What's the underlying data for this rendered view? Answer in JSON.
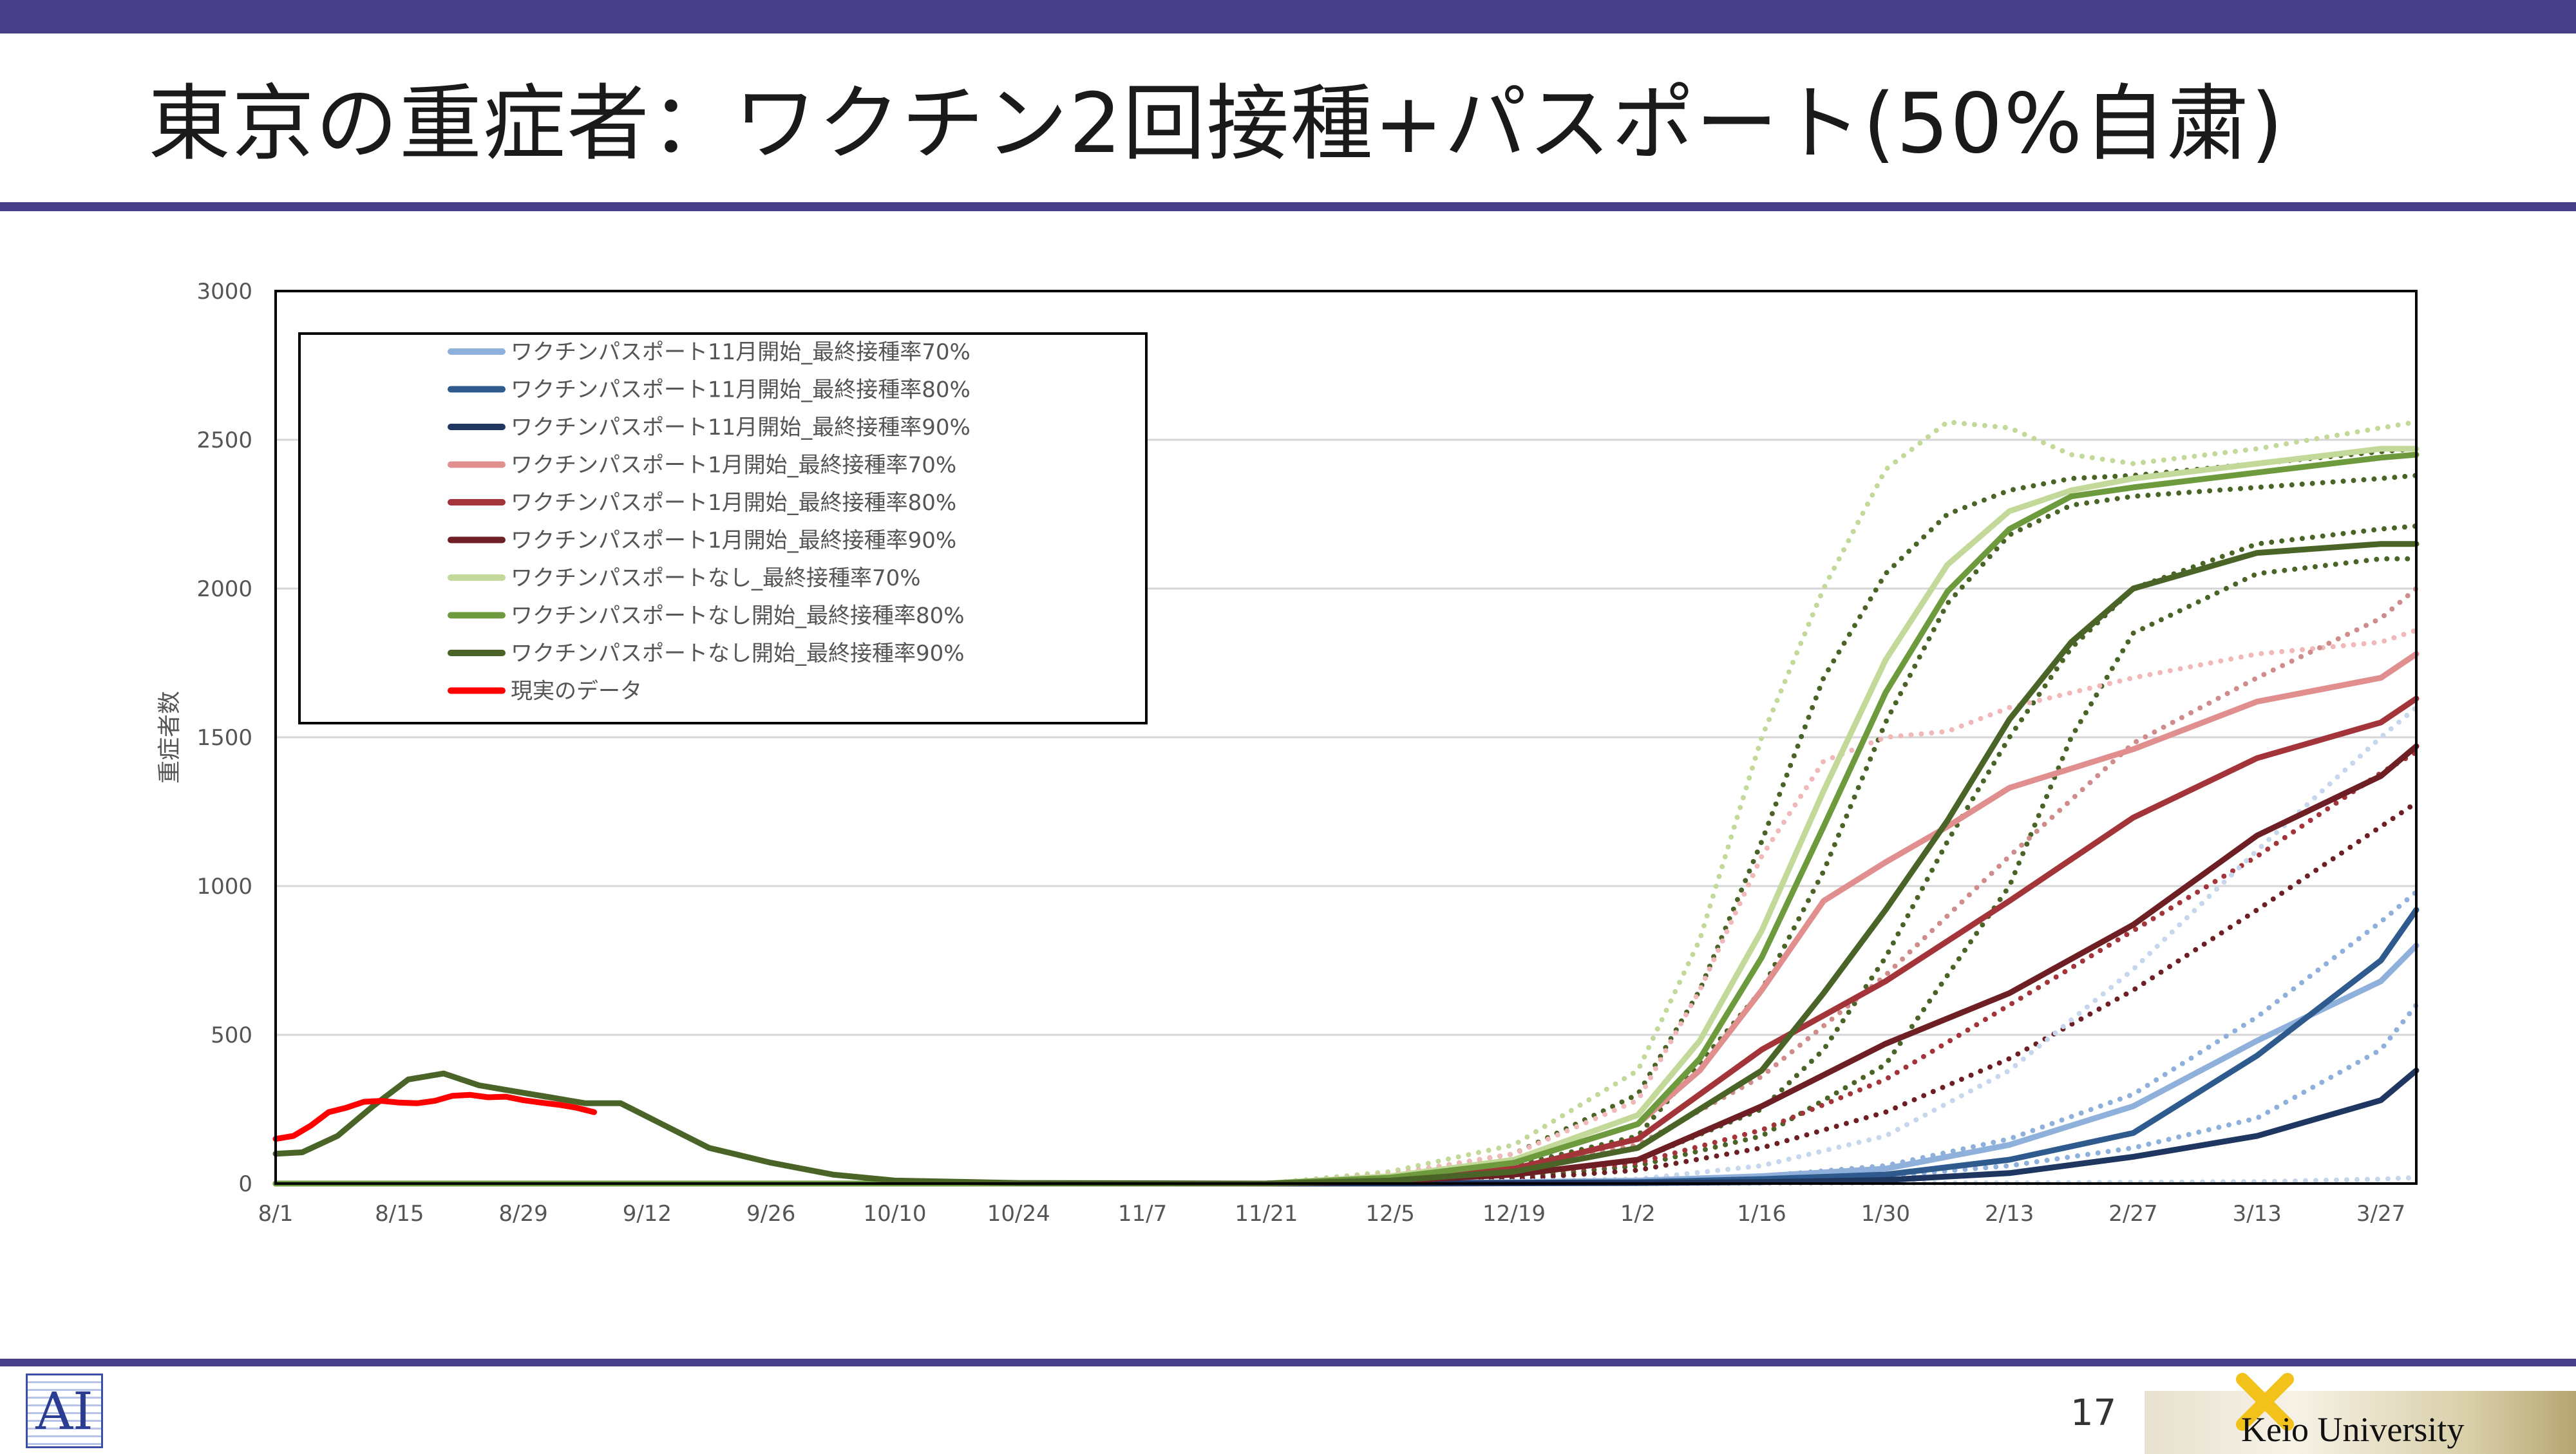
{
  "slide": {
    "title": "東京の重症者：ワクチン2回接種+パスポート(50%自粛)",
    "page_number": "17",
    "university": "Keio University",
    "logo_text": "AI"
  },
  "colors": {
    "accent_bar": "#463f87",
    "real_data": "#ff0000"
  },
  "chart_data": {
    "type": "line",
    "title": "",
    "xlabel": "",
    "ylabel": "重症者数",
    "ylim": [
      0,
      3000
    ],
    "yticks": [
      0,
      500,
      1000,
      1500,
      2000,
      2500,
      3000
    ],
    "x_start": "8/1",
    "x_ticks": [
      "8/1",
      "8/15",
      "8/29",
      "9/12",
      "9/26",
      "10/10",
      "10/24",
      "11/7",
      "11/21",
      "12/5",
      "12/19",
      "1/2",
      "1/16",
      "1/30",
      "2/13",
      "2/27",
      "3/13",
      "3/27"
    ],
    "grid": "horizontal",
    "legend": "top-left",
    "series": [
      {
        "name": "ワクチンパスポート11月開始_最終接種率70%",
        "color": "#8eb0da",
        "x": [
          "8/1",
          "12/5",
          "1/2",
          "1/16",
          "1/30",
          "2/13",
          "2/27",
          "3/13",
          "3/27",
          "3/31"
        ],
        "values": [
          0,
          0,
          10,
          25,
          50,
          130,
          260,
          480,
          680,
          800
        ]
      },
      {
        "name": "ワクチンパスポート11月開始_最終接種率80%",
        "color": "#2e5a8e",
        "x": [
          "8/1",
          "12/5",
          "1/2",
          "1/16",
          "1/30",
          "2/13",
          "2/27",
          "3/13",
          "3/27",
          "3/31"
        ],
        "values": [
          0,
          0,
          5,
          15,
          30,
          80,
          170,
          430,
          750,
          920
        ]
      },
      {
        "name": "ワクチンパスポート11月開始_最終接種率90%",
        "color": "#1e3660",
        "x": [
          "8/1",
          "12/5",
          "1/2",
          "1/16",
          "1/30",
          "2/13",
          "2/27",
          "3/13",
          "3/27",
          "3/31"
        ],
        "values": [
          0,
          0,
          2,
          5,
          12,
          35,
          90,
          160,
          280,
          380
        ]
      },
      {
        "name": "ワクチンパスポート1月開始_最終接種率70%",
        "color": "#e08e8e",
        "x": [
          "8/1",
          "11/21",
          "12/5",
          "12/19",
          "1/2",
          "1/9",
          "1/16",
          "1/23",
          "1/30",
          "2/6",
          "2/13",
          "2/27",
          "3/13",
          "3/27",
          "3/31"
        ],
        "values": [
          0,
          0,
          20,
          70,
          200,
          380,
          650,
          950,
          1080,
          1200,
          1330,
          1460,
          1620,
          1700,
          1780
        ]
      },
      {
        "name": "ワクチンパスポート1月開始_最終接種率80%",
        "color": "#a3343a",
        "x": [
          "8/1",
          "11/21",
          "12/5",
          "12/19",
          "1/2",
          "1/16",
          "1/30",
          "2/13",
          "2/27",
          "3/13",
          "3/27",
          "3/31"
        ],
        "values": [
          0,
          0,
          15,
          50,
          150,
          450,
          680,
          950,
          1230,
          1430,
          1550,
          1630
        ]
      },
      {
        "name": "ワクチンパスポート1月開始_最終接種率90%",
        "color": "#6e1f24",
        "x": [
          "8/1",
          "11/21",
          "12/5",
          "12/19",
          "1/2",
          "1/16",
          "1/30",
          "2/13",
          "2/27",
          "3/13",
          "3/27",
          "3/31"
        ],
        "values": [
          0,
          0,
          8,
          30,
          80,
          260,
          470,
          640,
          870,
          1170,
          1370,
          1470
        ]
      },
      {
        "name": "ワクチンパスポートなし_最終接種率70%",
        "color": "#c3d99a",
        "x": [
          "8/1",
          "11/21",
          "12/5",
          "12/19",
          "1/2",
          "1/9",
          "1/16",
          "1/23",
          "1/30",
          "2/6",
          "2/13",
          "2/20",
          "2/27",
          "3/13",
          "3/27",
          "3/31"
        ],
        "values": [
          0,
          0,
          25,
          80,
          230,
          480,
          850,
          1320,
          1760,
          2080,
          2260,
          2330,
          2370,
          2420,
          2470,
          2470
        ]
      },
      {
        "name": "ワクチンパスポートなし開始_最終接種率80%",
        "color": "#6e9a3e",
        "x": [
          "8/1",
          "11/21",
          "12/5",
          "12/19",
          "1/2",
          "1/9",
          "1/16",
          "1/23",
          "1/30",
          "2/6",
          "2/13",
          "2/20",
          "2/27",
          "3/13",
          "3/27",
          "3/31"
        ],
        "values": [
          0,
          0,
          20,
          70,
          200,
          420,
          760,
          1200,
          1650,
          1990,
          2200,
          2310,
          2340,
          2390,
          2440,
          2450
        ]
      },
      {
        "name": "ワクチンパスポートなし開始_最終接種率90%",
        "color": "#4a6428",
        "x": [
          "8/1",
          "8/4",
          "8/8",
          "8/12",
          "8/16",
          "8/20",
          "8/24",
          "8/28",
          "9/1",
          "9/5",
          "9/9",
          "9/13",
          "9/19",
          "9/26",
          "10/3",
          "10/10",
          "10/24",
          "11/21",
          "12/5",
          "12/19",
          "1/2",
          "1/16",
          "1/23",
          "1/30",
          "2/6",
          "2/13",
          "2/20",
          "2/27",
          "3/13",
          "3/27",
          "3/31"
        ],
        "values": [
          100,
          105,
          160,
          260,
          350,
          370,
          330,
          310,
          290,
          270,
          270,
          210,
          120,
          70,
          30,
          10,
          2,
          0,
          10,
          40,
          120,
          380,
          640,
          920,
          1220,
          1560,
          1820,
          2000,
          2120,
          2150,
          2150
        ]
      },
      {
        "name": "現実のデータ",
        "color": "#ff0000",
        "x": [
          "8/1",
          "8/3",
          "8/5",
          "8/7",
          "8/9",
          "8/11",
          "8/13",
          "8/15",
          "8/17",
          "8/19",
          "8/21",
          "8/23",
          "8/25",
          "8/27",
          "8/29",
          "8/31",
          "9/2",
          "9/4",
          "9/6"
        ],
        "values": [
          150,
          160,
          195,
          240,
          255,
          275,
          278,
          272,
          270,
          278,
          295,
          298,
          290,
          292,
          280,
          272,
          265,
          255,
          240
        ]
      }
    ],
    "dotted_series": [
      {
        "color": "#c3d99a",
        "x": [
          "8/1",
          "11/21",
          "12/5",
          "12/19",
          "1/2",
          "1/9",
          "1/16",
          "1/23",
          "1/30",
          "2/6",
          "2/13",
          "2/20",
          "2/27",
          "3/13",
          "3/27",
          "3/31"
        ],
        "values": [
          0,
          0,
          40,
          130,
          380,
          820,
          1500,
          2000,
          2400,
          2560,
          2540,
          2450,
          2420,
          2470,
          2540,
          2560
        ]
      },
      {
        "color": "#4a6428",
        "x": [
          "8/1",
          "11/21",
          "12/5",
          "12/19",
          "1/2",
          "1/9",
          "1/16",
          "1/23",
          "1/30",
          "2/6",
          "2/13",
          "2/20",
          "2/27",
          "3/13",
          "3/27",
          "3/31"
        ],
        "values": [
          0,
          0,
          30,
          100,
          300,
          650,
          1150,
          1700,
          2050,
          2250,
          2330,
          2370,
          2380,
          2420,
          2460,
          2470
        ]
      },
      {
        "color": "#4a6428",
        "x": [
          "8/1",
          "11/21",
          "12/5",
          "12/19",
          "1/2",
          "1/16",
          "1/23",
          "1/30",
          "2/6",
          "2/13",
          "2/20",
          "2/27",
          "3/13",
          "3/27",
          "3/31"
        ],
        "values": [
          0,
          0,
          15,
          60,
          160,
          650,
          1050,
          1550,
          1950,
          2180,
          2280,
          2310,
          2340,
          2370,
          2380
        ]
      },
      {
        "color": "#4a6428",
        "x": [
          "8/1",
          "11/21",
          "12/5",
          "12/19",
          "1/2",
          "1/16",
          "1/23",
          "1/30",
          "2/6",
          "2/13",
          "2/20",
          "2/27",
          "3/13",
          "3/27",
          "3/31"
        ],
        "values": [
          0,
          0,
          8,
          30,
          80,
          250,
          450,
          760,
          1150,
          1500,
          1800,
          2000,
          2150,
          2200,
          2210
        ]
      },
      {
        "color": "#4a6428",
        "x": [
          "8/1",
          "11/21",
          "12/5",
          "12/19",
          "1/2",
          "1/16",
          "1/30",
          "2/13",
          "2/20",
          "2/27",
          "3/13",
          "3/27",
          "3/31"
        ],
        "values": [
          0,
          0,
          5,
          20,
          60,
          160,
          400,
          1000,
          1500,
          1850,
          2050,
          2100,
          2100
        ]
      },
      {
        "color": "#f0b8b8",
        "x": [
          "8/1",
          "11/21",
          "12/5",
          "12/19",
          "1/2",
          "1/9",
          "1/16",
          "1/23",
          "1/30",
          "2/6",
          "2/13",
          "2/27",
          "3/13",
          "3/27",
          "3/31"
        ],
        "values": [
          0,
          0,
          30,
          100,
          280,
          650,
          1100,
          1420,
          1500,
          1520,
          1600,
          1700,
          1780,
          1820,
          1860
        ]
      },
      {
        "color": "#d08b8b",
        "x": [
          "8/1",
          "11/21",
          "12/5",
          "12/19",
          "1/2",
          "1/16",
          "1/30",
          "2/13",
          "2/27",
          "3/13",
          "3/27",
          "3/31"
        ],
        "values": [
          0,
          0,
          15,
          50,
          130,
          360,
          700,
          1100,
          1480,
          1700,
          1900,
          2000
        ]
      },
      {
        "color": "#a3343a",
        "x": [
          "8/1",
          "11/21",
          "12/5",
          "12/19",
          "1/2",
          "1/16",
          "1/30",
          "2/13",
          "2/27",
          "3/13",
          "3/27",
          "3/31"
        ],
        "values": [
          0,
          0,
          8,
          30,
          70,
          180,
          350,
          600,
          850,
          1100,
          1380,
          1450
        ]
      },
      {
        "color": "#6e1f24",
        "x": [
          "8/1",
          "11/21",
          "12/5",
          "12/19",
          "1/2",
          "1/16",
          "1/30",
          "2/13",
          "2/27",
          "3/13",
          "3/27",
          "3/31"
        ],
        "values": [
          0,
          0,
          4,
          15,
          45,
          120,
          240,
          420,
          650,
          920,
          1200,
          1280
        ]
      },
      {
        "color": "#c6d6ec",
        "x": [
          "8/1",
          "12/5",
          "1/2",
          "1/16",
          "1/30",
          "2/13",
          "2/27",
          "3/13",
          "3/27",
          "3/31"
        ],
        "values": [
          0,
          0,
          15,
          60,
          160,
          380,
          720,
          1120,
          1500,
          1600
        ]
      },
      {
        "color": "#8eb0da",
        "x": [
          "8/1",
          "12/5",
          "1/2",
          "1/16",
          "1/30",
          "2/13",
          "2/27",
          "3/13",
          "3/27",
          "3/31"
        ],
        "values": [
          0,
          0,
          8,
          25,
          60,
          150,
          300,
          560,
          880,
          980
        ]
      },
      {
        "color": "#8eb0da",
        "x": [
          "8/1",
          "12/5",
          "1/2",
          "1/16",
          "1/30",
          "2/13",
          "2/27",
          "3/13",
          "3/27",
          "3/31"
        ],
        "values": [
          0,
          0,
          3,
          10,
          25,
          60,
          120,
          220,
          450,
          600
        ]
      },
      {
        "color": "#c6d6ec",
        "x": [
          "8/1",
          "1/2",
          "2/13",
          "3/13",
          "3/27",
          "3/31"
        ],
        "values": [
          0,
          0,
          2,
          6,
          15,
          20
        ]
      }
    ]
  }
}
